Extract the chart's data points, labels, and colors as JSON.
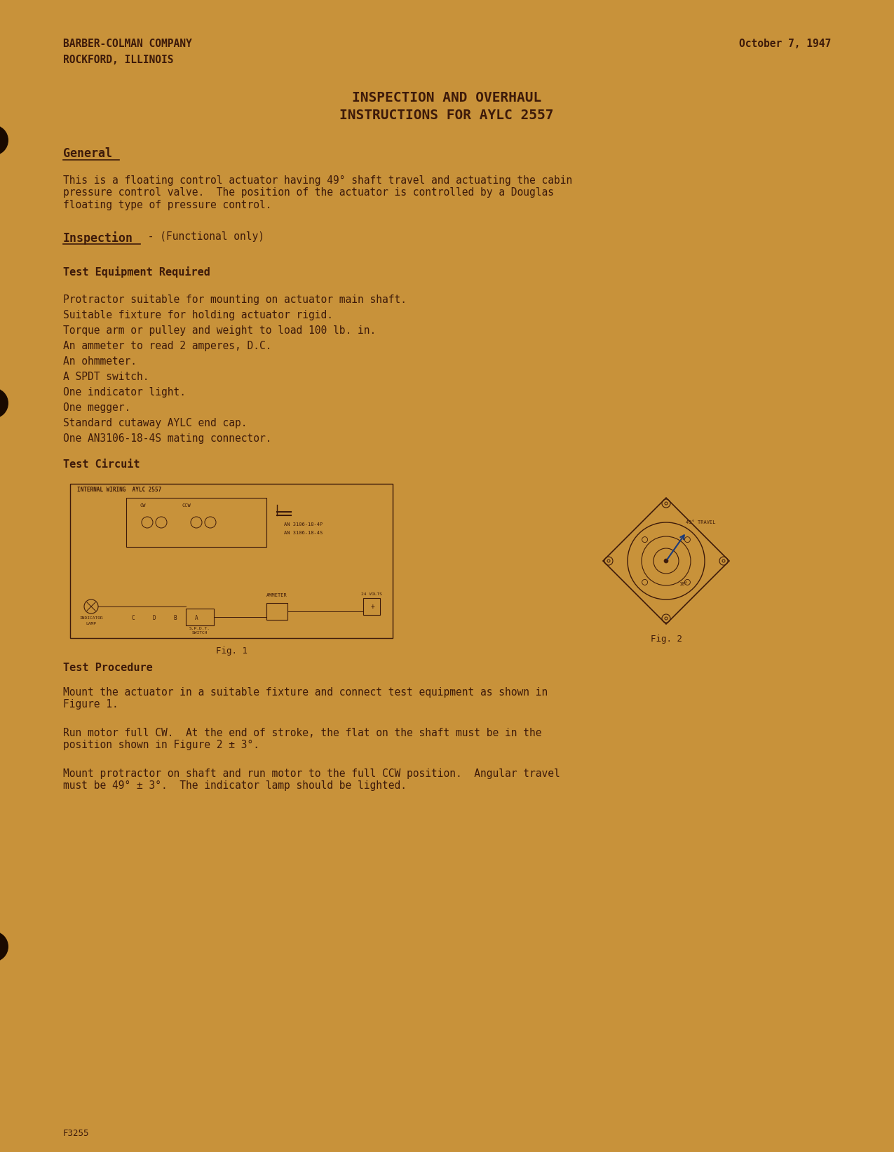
{
  "bg_color": "#c8923a",
  "paper_color": "#c8923a",
  "text_color": "#3d1a0a",
  "title": "INSPECTION AND OVERHAUL\nINSTRUCTIONS FOR AYLC 2557",
  "company_left_line1": "BARBER-COLMAN COMPANY",
  "company_left_line2": "ROCKFORD, ILLINOIS",
  "date": "October 7, 1947",
  "section_general": "General",
  "para_general": "This is a floating control actuator having 49° shaft travel and actuating the cabin\npressure control valve.  The position of the actuator is controlled by a Douglas\nfloating type of pressure control.",
  "section_inspection": "Inspection",
  "inspection_sub": " - (Functional only)",
  "section_test_equip": "Test Equipment Required",
  "test_equip_items": [
    "Protractor suitable for mounting on actuator main shaft.",
    "Suitable fixture for holding actuator rigid.",
    "Torque arm or pulley and weight to load 100 lb. in.",
    "An ammeter to read 2 amperes, D.C.",
    "An ohmmeter.",
    "A SPDT switch.",
    "One indicator light.",
    "One megger.",
    "Standard cutaway AYLC end cap.",
    "One AN3106-18-4S mating connector."
  ],
  "section_test_circuit": "Test Circuit",
  "fig1_label": "Fig. 1",
  "fig2_label": "Fig. 2",
  "section_test_procedure": "Test Procedure",
  "para_procedure1": "Mount the actuator in a suitable fixture and connect test equipment as shown in\nFigure 1.",
  "para_procedure2": "Run motor full CW.  At the end of stroke, the flat on the shaft must be in the\nposition shown in Figure 2 ± 3°.",
  "para_procedure3": "Mount protractor on shaft and run motor to the full CCW position.  Angular travel\nmust be 49° ± 3°.  The indicator lamp should be lighted.",
  "footer": "F3255"
}
